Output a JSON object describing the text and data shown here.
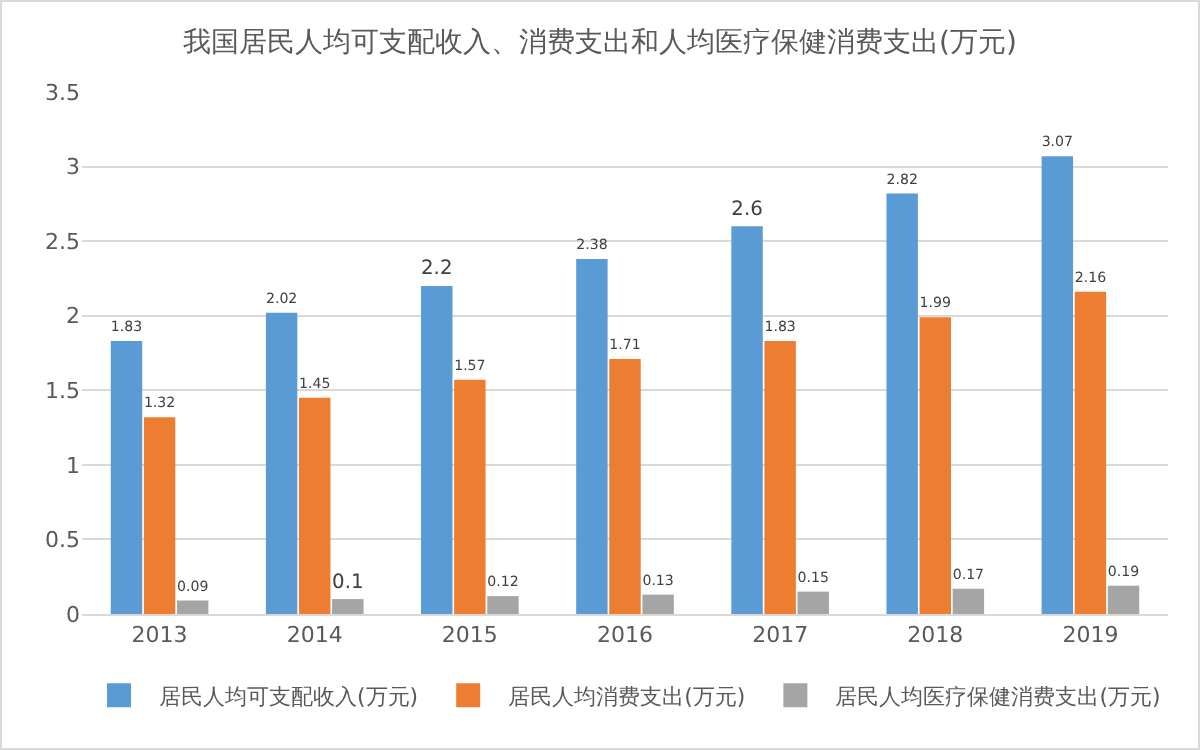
{
  "chart_data": {
    "type": "bar",
    "title": "我国居民人均可支配收入、消费支出和人均医疗保健消费支出(万元)",
    "categories": [
      "2013",
      "2014",
      "2015",
      "2016",
      "2017",
      "2018",
      "2019"
    ],
    "series": [
      {
        "name": "居民人均可支配收入(万元)",
        "color": "#5b9bd5",
        "values": [
          1.83,
          2.02,
          2.2,
          2.38,
          2.6,
          2.82,
          3.07
        ]
      },
      {
        "name": "居民人均消费支出(万元)",
        "color": "#ed7d31",
        "values": [
          1.32,
          1.45,
          1.57,
          1.71,
          1.83,
          1.99,
          2.16
        ]
      },
      {
        "name": "居民人均医疗保健消费支出(万元)",
        "color": "#a5a5a5",
        "values": [
          0.09,
          0.1,
          0.12,
          0.13,
          0.15,
          0.17,
          0.19
        ]
      }
    ],
    "ylim": [
      0,
      3.5
    ],
    "yticks": [
      0,
      0.5,
      1,
      1.5,
      2,
      2.5,
      3,
      3.5
    ],
    "grid": "y",
    "legend": "bottom",
    "data_labels": true
  }
}
